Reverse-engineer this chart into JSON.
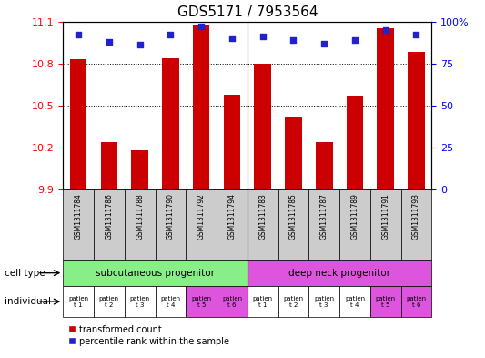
{
  "title": "GDS5171 / 7953564",
  "samples": [
    "GSM1311784",
    "GSM1311786",
    "GSM1311788",
    "GSM1311790",
    "GSM1311792",
    "GSM1311794",
    "GSM1311783",
    "GSM1311785",
    "GSM1311787",
    "GSM1311789",
    "GSM1311791",
    "GSM1311793"
  ],
  "bar_values": [
    10.83,
    10.24,
    10.18,
    10.84,
    11.08,
    10.58,
    10.8,
    10.42,
    10.24,
    10.57,
    11.05,
    10.88
  ],
  "percentile_values": [
    92,
    88,
    86,
    92,
    97,
    90,
    91,
    89,
    87,
    89,
    95,
    92
  ],
  "ylim_left": [
    9.9,
    11.1
  ],
  "ylim_right": [
    0,
    100
  ],
  "yticks_left": [
    9.9,
    10.2,
    10.5,
    10.8,
    11.1
  ],
  "yticks_right": [
    0,
    25,
    50,
    75,
    100
  ],
  "ytick_labels_left": [
    "9.9",
    "10.2",
    "10.5",
    "10.8",
    "11.1"
  ],
  "ytick_labels_right": [
    "0",
    "25",
    "50",
    "75",
    "100%"
  ],
  "bar_color": "#cc0000",
  "dot_color": "#2222cc",
  "bar_bottom": 9.9,
  "group_separator": 5.5,
  "cell_type_groups": [
    {
      "label": "subcutaneous progenitor",
      "start": 0,
      "end": 6,
      "color": "#88ee88"
    },
    {
      "label": "deep neck progenitor",
      "start": 6,
      "end": 12,
      "color": "#dd55dd"
    }
  ],
  "individual_labels": [
    "patien\nt 1",
    "patien\nt 2",
    "patien\nt 3",
    "patien\nt 4",
    "patien\nt 5",
    "patien\nt 6",
    "patien\nt 1",
    "patien\nt 2",
    "patien\nt 3",
    "patien\nt 4",
    "patien\nt 5",
    "patien\nt 6"
  ],
  "individual_colors": [
    "#ffffff",
    "#ffffff",
    "#ffffff",
    "#ffffff",
    "#dd55dd",
    "#dd55dd",
    "#ffffff",
    "#ffffff",
    "#ffffff",
    "#ffffff",
    "#dd55dd",
    "#dd55dd"
  ],
  "legend_items": [
    {
      "color": "#cc0000",
      "label": "transformed count"
    },
    {
      "color": "#2222cc",
      "label": "percentile rank within the sample"
    }
  ],
  "row_label_cell_type": "cell type",
  "row_label_individual": "individual",
  "sample_box_color": "#cccccc",
  "background_color": "#ffffff",
  "title_fontsize": 11,
  "tick_fontsize": 8,
  "bar_width": 0.55
}
